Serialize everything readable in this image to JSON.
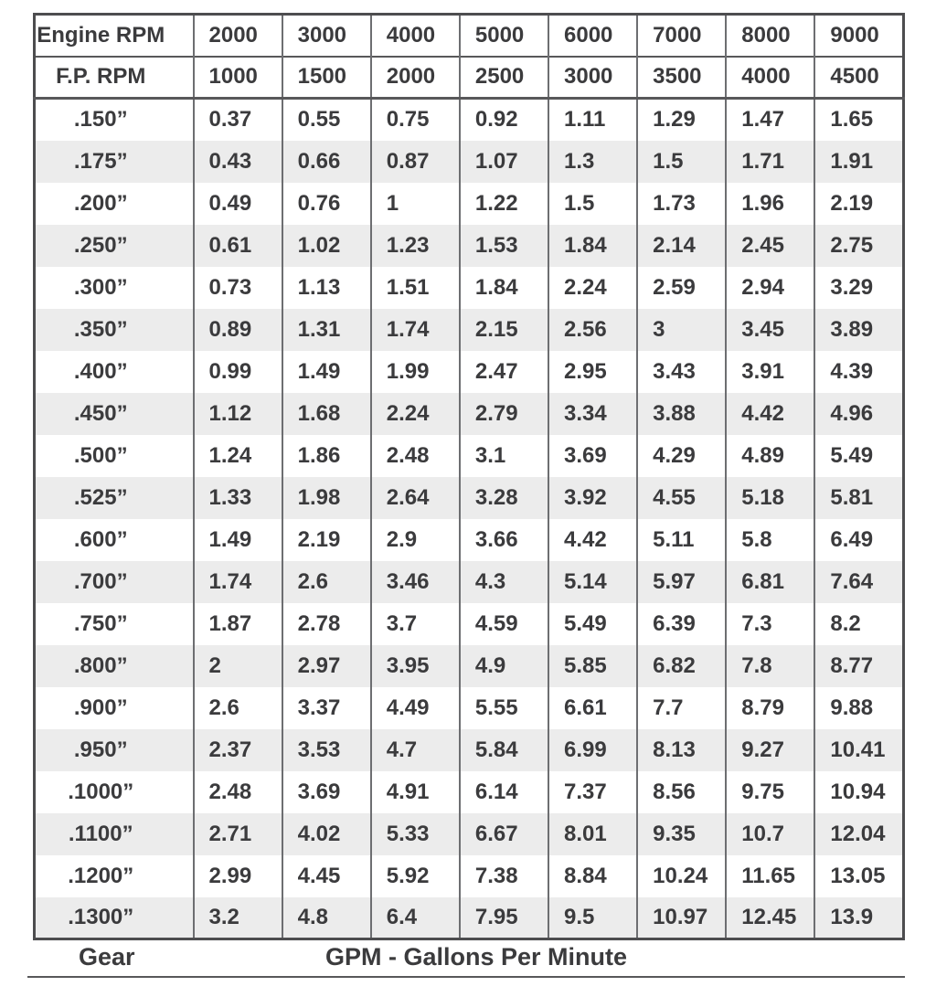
{
  "table": {
    "header_rows": [
      {
        "label": "Engine RPM",
        "values": [
          "2000",
          "3000",
          "4000",
          "5000",
          "6000",
          "7000",
          "8000",
          "9000"
        ]
      },
      {
        "label": "F.P. RPM",
        "values": [
          "1000",
          "1500",
          "2000",
          "2500",
          "3000",
          "3500",
          "4000",
          "4500"
        ]
      }
    ],
    "rows": [
      {
        "gear": ".150”",
        "values": [
          "0.37",
          "0.55",
          "0.75",
          "0.92",
          "1.11",
          "1.29",
          "1.47",
          "1.65"
        ]
      },
      {
        "gear": ".175”",
        "values": [
          "0.43",
          "0.66",
          "0.87",
          "1.07",
          "1.3",
          "1.5",
          "1.71",
          "1.91"
        ]
      },
      {
        "gear": ".200”",
        "values": [
          "0.49",
          "0.76",
          "1",
          "1.22",
          "1.5",
          "1.73",
          "1.96",
          "2.19"
        ]
      },
      {
        "gear": ".250”",
        "values": [
          "0.61",
          "1.02",
          "1.23",
          "1.53",
          "1.84",
          "2.14",
          "2.45",
          "2.75"
        ]
      },
      {
        "gear": ".300”",
        "values": [
          "0.73",
          "1.13",
          "1.51",
          "1.84",
          "2.24",
          "2.59",
          "2.94",
          "3.29"
        ]
      },
      {
        "gear": ".350”",
        "values": [
          "0.89",
          "1.31",
          "1.74",
          "2.15",
          "2.56",
          "3",
          "3.45",
          "3.89"
        ]
      },
      {
        "gear": ".400”",
        "values": [
          "0.99",
          "1.49",
          "1.99",
          "2.47",
          "2.95",
          "3.43",
          "3.91",
          "4.39"
        ]
      },
      {
        "gear": ".450”",
        "values": [
          "1.12",
          "1.68",
          "2.24",
          "2.79",
          "3.34",
          "3.88",
          "4.42",
          "4.96"
        ]
      },
      {
        "gear": ".500”",
        "values": [
          "1.24",
          "1.86",
          "2.48",
          "3.1",
          "3.69",
          "4.29",
          "4.89",
          "5.49"
        ]
      },
      {
        "gear": ".525”",
        "values": [
          "1.33",
          "1.98",
          "2.64",
          "3.28",
          "3.92",
          "4.55",
          "5.18",
          "5.81"
        ]
      },
      {
        "gear": ".600”",
        "values": [
          "1.49",
          "2.19",
          "2.9",
          "3.66",
          "4.42",
          "5.11",
          "5.8",
          "6.49"
        ]
      },
      {
        "gear": ".700”",
        "values": [
          "1.74",
          "2.6",
          "3.46",
          "4.3",
          "5.14",
          "5.97",
          "6.81",
          "7.64"
        ]
      },
      {
        "gear": ".750”",
        "values": [
          "1.87",
          "2.78",
          "3.7",
          "4.59",
          "5.49",
          "6.39",
          "7.3",
          "8.2"
        ]
      },
      {
        "gear": ".800”",
        "values": [
          "2",
          "2.97",
          "3.95",
          "4.9",
          "5.85",
          "6.82",
          "7.8",
          "8.77"
        ]
      },
      {
        "gear": ".900”",
        "values": [
          "2.6",
          "3.37",
          "4.49",
          "5.55",
          "6.61",
          "7.7",
          "8.79",
          "9.88"
        ]
      },
      {
        "gear": ".950”",
        "values": [
          "2.37",
          "3.53",
          "4.7",
          "5.84",
          "6.99",
          "8.13",
          "9.27",
          "10.41"
        ]
      },
      {
        "gear": ".1000”",
        "values": [
          "2.48",
          "3.69",
          "4.91",
          "6.14",
          "7.37",
          "8.56",
          "9.75",
          "10.94"
        ]
      },
      {
        "gear": ".1100”",
        "values": [
          "2.71",
          "4.02",
          "5.33",
          "6.67",
          "8.01",
          "9.35",
          "10.7",
          "12.04"
        ]
      },
      {
        "gear": ".1200”",
        "values": [
          "2.99",
          "4.45",
          "5.92",
          "7.38",
          "8.84",
          "10.24",
          "11.65",
          "13.05"
        ]
      },
      {
        "gear": ".1300”",
        "values": [
          "3.2",
          "4.8",
          "6.4",
          "7.95",
          "9.5",
          "10.97",
          "12.45",
          "13.9"
        ]
      }
    ],
    "footer": {
      "gear_label": "Gear",
      "unit_label": "GPM - Gallons Per Minute"
    }
  },
  "colors": {
    "stripe": "#ececec",
    "text": "#3b3b3d",
    "grid_line": "#6d6e71",
    "outer_border": "#4d4d4f",
    "rule": "#58585a"
  }
}
